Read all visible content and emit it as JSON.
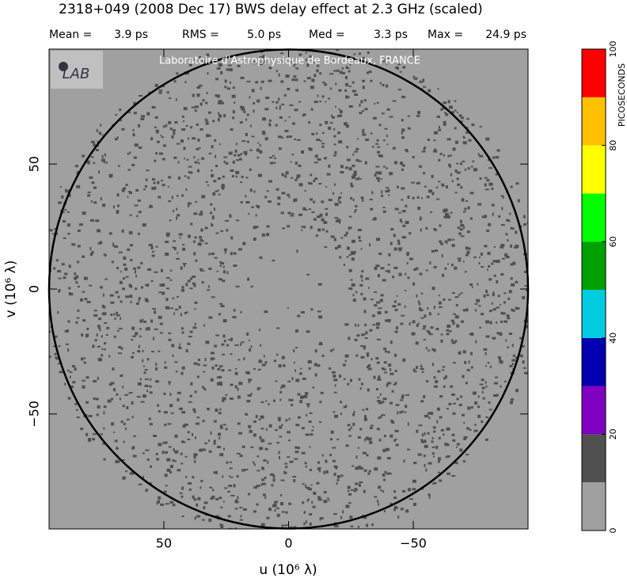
{
  "chart_data": {
    "type": "uv-coverage",
    "title": "2318+049  (2008 Dec 17)   BWS delay effect at  2.3 GHz (scaled)",
    "stats": [
      {
        "name": "Mean =",
        "value": "3.9 ps"
      },
      {
        "name": "RMS =",
        "value": "5.0 ps"
      },
      {
        "name": "Med =",
        "value": "3.3 ps"
      },
      {
        "name": "Max =",
        "value": "24.9 ps"
      }
    ],
    "watermark": "Laboratoire d'Astrophysique de Bordeaux, FRANCE",
    "logo": "LAB",
    "x_label": "u  (10⁶ λ)",
    "y_label": "v  (10⁶ λ)",
    "xlim": [
      96,
      -96
    ],
    "ylim": [
      -96,
      96
    ],
    "xticks": [
      50,
      0,
      {
        "value": -50,
        "label": "−50"
      }
    ],
    "yticks": [
      {
        "value": -50,
        "label": "−50"
      },
      0,
      50
    ],
    "circle_radius": 96,
    "background_color": "#a0a0a0",
    "speckle_color": "#505050",
    "colorbar": {
      "label": "PICOSECONDS",
      "levels": [
        0,
        10,
        20,
        30,
        40,
        50,
        60,
        70,
        80,
        90,
        100
      ],
      "colors": [
        "#a0a0a0",
        "#505050",
        "#8000c0",
        "#0000b0",
        "#00cce0",
        "#00a000",
        "#00ff00",
        "#ffff00",
        "#ffc000",
        "#ff0000"
      ],
      "ticks": [
        0,
        20,
        40,
        60,
        80,
        100
      ]
    }
  }
}
